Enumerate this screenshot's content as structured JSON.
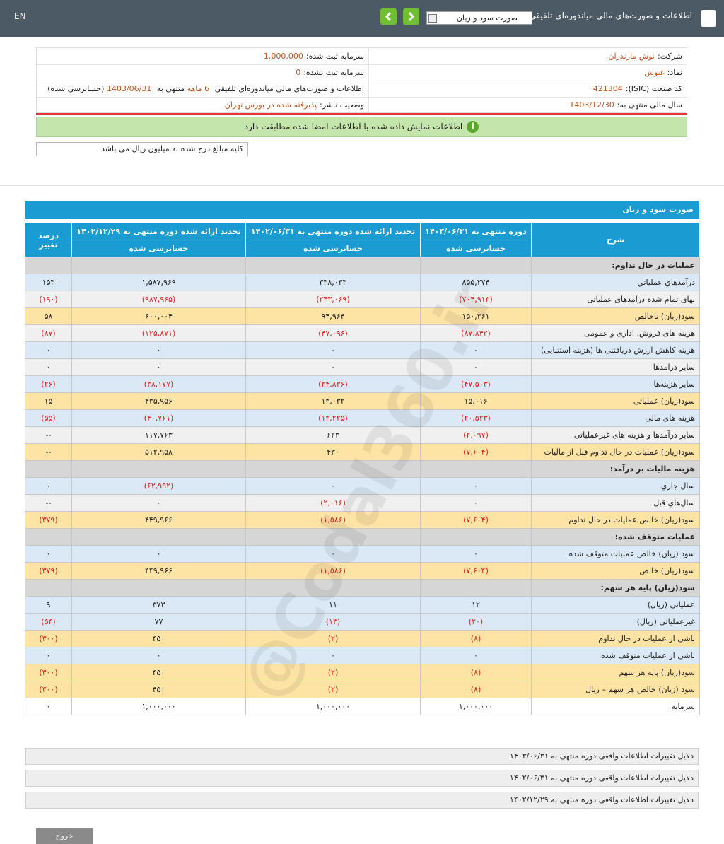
{
  "topbar": {
    "lang": "EN",
    "title": "اطلاعات و صورت‌های مالی میاندوره‌ای تلفیقی",
    "select": "صورت سود و زیان"
  },
  "info": {
    "company_label": "شرکت:",
    "company": "نوش مازندران",
    "registered_capital_label": "سرمایه ثبت شده:",
    "registered_capital": "1,000,000",
    "symbol_label": "نماد:",
    "symbol": "غنوش",
    "unregistered_capital_label": "سرمایه ثبت نشده:",
    "unregistered_capital": "0",
    "isic_label": "کد صنعت (ISIC):",
    "isic": "421304",
    "report_label": "اطلاعات و صورت‌های مالی میاندوره‌ای تلفیقی",
    "report_period": "6 ماهه",
    "report_to": "منتهی به",
    "report_date": "1403/06/31",
    "report_status": "(حسابرسی شده)",
    "fiscal_year_label": "سال مالی منتهی به:",
    "fiscal_year": "1403/12/30",
    "publisher_status_label": "وضعیت ناشر:",
    "publisher_status": "پذیرفته شده در بورس تهران"
  },
  "notice": "اطلاعات نمایش داده شده با اطلاعات امضا شده مطابقت دارد",
  "unit_note": "کلیه مبالغ درج شده به میلیون ریال می باشد",
  "watermark": "@Codal360.ir",
  "table": {
    "title": "صورت سود و زیان",
    "columns": [
      "شرح",
      "دوره منتهی به ۱۴۰۳/۰۶/۳۱",
      "تجدید ارائه شده دوره منتهی به ۱۴۰۲/۰۶/۳۱",
      "تجدید ارائه شده دوره منتهی به ۱۴۰۲/۱۲/۲۹",
      "درصد تغییر"
    ],
    "subheaders": [
      "حسابرسی شده",
      "حسابرسی شده",
      "حسابرسی شده"
    ],
    "rows": [
      {
        "label": "عملیات در حال تداوم:",
        "section": true
      },
      {
        "label": "درآمدهاي عملياتي",
        "cells": [
          "۸۵۵,۲۷۴",
          "۳۳۸,۰۳۳",
          "۱,۵۸۷,۹۶۹",
          "۱۵۳"
        ]
      },
      {
        "label": "بهاى تمام شده درآمدهاى عملياتى",
        "cells": [
          "(۷۰۴,۹۱۳)",
          "(۲۴۳,۰۶۹)",
          "(۹۸۷,۹۶۵)",
          "(۱۹۰)"
        ]
      },
      {
        "label": "سود(زيان) ناخالص",
        "cells": [
          "۱۵۰,۳۶۱",
          "۹۴,۹۶۴",
          "۶۰۰,۰۰۴",
          "۵۸"
        ]
      },
      {
        "label": "هزينه هاى فروش، ادارى و عمومى",
        "cells": [
          "(۸۷,۸۴۲)",
          "(۴۷,۰۹۶)",
          "(۱۲۵,۸۷۱)",
          "(۸۷)"
        ]
      },
      {
        "label": "هزينه كاهش ارزش دريافتنى ها (هزينه استثنايى)",
        "cells": [
          "۰",
          "۰",
          "۰",
          "۰"
        ]
      },
      {
        "label": "ساير درآمدها",
        "cells": [
          "۰",
          "۰",
          "۰",
          "۰"
        ]
      },
      {
        "label": "ساير هزينه‌ها",
        "cells": [
          "(۴۷,۵۰۳)",
          "(۳۴,۸۳۶)",
          "(۳۸,۱۷۷)",
          "(۲۶)"
        ]
      },
      {
        "label": "سود(زيان) عملياتى",
        "cells": [
          "۱۵,۰۱۶",
          "۱۳,۰۳۲",
          "۴۳۵,۹۵۶",
          "۱۵"
        ]
      },
      {
        "label": "هزينه هاى مالى",
        "cells": [
          "(۲۰,۵۲۳)",
          "(۱۳,۲۲۵)",
          "(۴۰,۷۶۱)",
          "(۵۵)"
        ]
      },
      {
        "label": "ساير درآمدها و هزينه هاى غيرعملياتى",
        "cells": [
          "(۲,۰۹۷)",
          "۶۲۳",
          "۱۱۷,۷۶۳",
          "--"
        ]
      },
      {
        "label": "سود(زيان) عمليات در حال تداوم قبل از ماليات",
        "cells": [
          "(۷,۶۰۴)",
          "۴۳۰",
          "۵۱۲,۹۵۸",
          "--"
        ]
      },
      {
        "label": "هزينه ماليات بر درآمد:",
        "section": true
      },
      {
        "label": "سال جاري",
        "cells": [
          "۰",
          "۰",
          "(۶۲,۹۹۲)",
          "۰"
        ]
      },
      {
        "label": "سال‌هاي قبل",
        "cells": [
          "۰",
          "(۲,۰۱۶)",
          "۰",
          "--"
        ]
      },
      {
        "label": "سود(زيان) خالص عمليات در حال تداوم",
        "cells": [
          "(۷,۶۰۴)",
          "(۱,۵۸۶)",
          "۴۴۹,۹۶۶",
          "(۳۷۹)"
        ]
      },
      {
        "label": "عمليات متوقف شده:",
        "section": true
      },
      {
        "label": "سود (زيان) خالص عمليات متوقف شده",
        "cells": [
          "۰",
          "۰",
          "۰",
          "۰"
        ]
      },
      {
        "label": "سود(زيان) خالص",
        "cells": [
          "(۷,۶۰۴)",
          "(۱,۵۸۶)",
          "۴۴۹,۹۶۶",
          "(۳۷۹)"
        ]
      },
      {
        "label": "سود(زيان) پايه هر سهم:",
        "section": true
      },
      {
        "label": "عملياتى (ريال)",
        "cells": [
          "۱۲",
          "۱۱",
          "۳۷۳",
          "۹"
        ]
      },
      {
        "label": "غيرعملياتى (ريال)",
        "cells": [
          "(۲۰)",
          "(۱۳)",
          "۷۷",
          "(۵۴)"
        ]
      },
      {
        "label": "ناشى از عمليات در حال تداوم",
        "cells": [
          "(۸)",
          "(۲)",
          "۴۵۰",
          "(۳۰۰)"
        ]
      },
      {
        "label": "ناشى از عمليات متوقف شده",
        "cells": [
          "۰",
          "۰",
          "۰",
          "۰"
        ]
      },
      {
        "label": "سود(زيان) پايه هر سهم",
        "cells": [
          "(۸)",
          "(۲)",
          "۴۵۰",
          "(۳۰۰)"
        ]
      },
      {
        "label": "سود (زيان) خالص هر سهم – ريال",
        "cells": [
          "(۸)",
          "(۲)",
          "۴۵۰",
          "(۳۰۰)"
        ]
      },
      {
        "label": "سرمايه",
        "cells": [
          "۱,۰۰۰,۰۰۰",
          "۱,۰۰۰,۰۰۰",
          "۱,۰۰۰,۰۰۰",
          "۰"
        ]
      }
    ]
  },
  "changes": [
    "دلایل تغییرات اطلاعات واقعی دوره منتهی به ۱۴۰۳/۰۶/۳۱",
    "دلایل تغییرات اطلاعات واقعی دوره منتهی به ۱۴۰۲/۰۶/۳۱",
    "دلایل تغییرات اطلاعات واقعی دوره منتهی به ۱۴۰۲/۱۲/۲۹"
  ],
  "exit_button": "خروج"
}
